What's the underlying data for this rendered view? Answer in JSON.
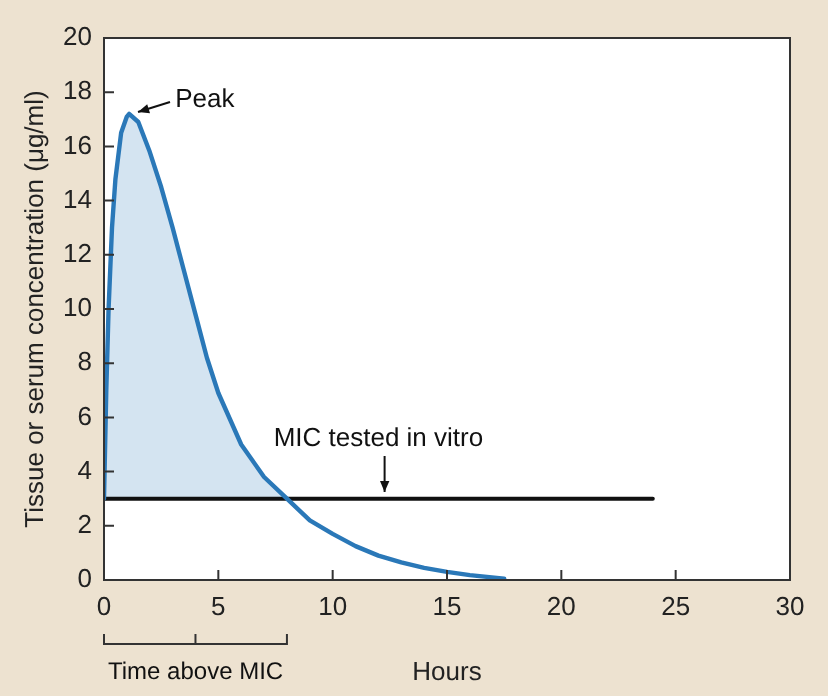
{
  "chart_data": {
    "type": "line",
    "xlabel": "Hours",
    "ylabel": "Tissue or serum concentration (μg/ml)",
    "xlim": [
      0,
      30
    ],
    "xticks": [
      0,
      5,
      10,
      15,
      20,
      25,
      30
    ],
    "ylim": [
      0,
      20
    ],
    "yticks": [
      0,
      2,
      4,
      6,
      8,
      10,
      12,
      14,
      16,
      18,
      20
    ],
    "grid": false,
    "legend": false,
    "marker": "none",
    "series": [
      {
        "color": "#2a78b8",
        "x": [
          0,
          0.1,
          0.2,
          0.35,
          0.5,
          0.75,
          1,
          1.1,
          1.5,
          2,
          2.5,
          3,
          3.5,
          4,
          4.5,
          5,
          6,
          7,
          8,
          9,
          10,
          11,
          12,
          13,
          14,
          15,
          16,
          17.5
        ],
        "values": [
          3,
          7,
          10,
          13,
          14.8,
          16.5,
          17.1,
          17.2,
          16.9,
          15.8,
          14.5,
          13,
          11.4,
          9.8,
          8.2,
          6.9,
          5,
          3.8,
          3,
          2.2,
          1.7,
          1.25,
          0.9,
          0.65,
          0.45,
          0.3,
          0.18,
          0.05
        ],
        "lower": [
          3,
          3,
          3,
          3,
          3,
          3,
          3,
          3,
          3,
          3,
          3,
          3,
          3,
          3,
          3,
          3,
          3,
          3,
          3,
          null,
          null,
          null,
          null,
          null,
          null,
          null,
          null,
          null
        ],
        "upper": [
          3,
          7,
          10,
          13,
          14.8,
          16.5,
          17.1,
          17.2,
          16.9,
          15.8,
          14.5,
          13,
          11.4,
          9.8,
          8.2,
          6.9,
          5,
          3.8,
          3,
          null,
          null,
          null,
          null,
          null,
          null,
          null,
          null,
          null
        ]
      },
      {
        "type": "line",
        "name": "MIC tested in vitro",
        "color": "#111111",
        "x": [
          0,
          24
        ],
        "values": [
          3,
          3
        ]
      }
    ],
    "annotations": [
      {
        "text": "Peak",
        "x": 1.1,
        "y": 17.2
      },
      "Time above MIC"
    ]
  }
}
